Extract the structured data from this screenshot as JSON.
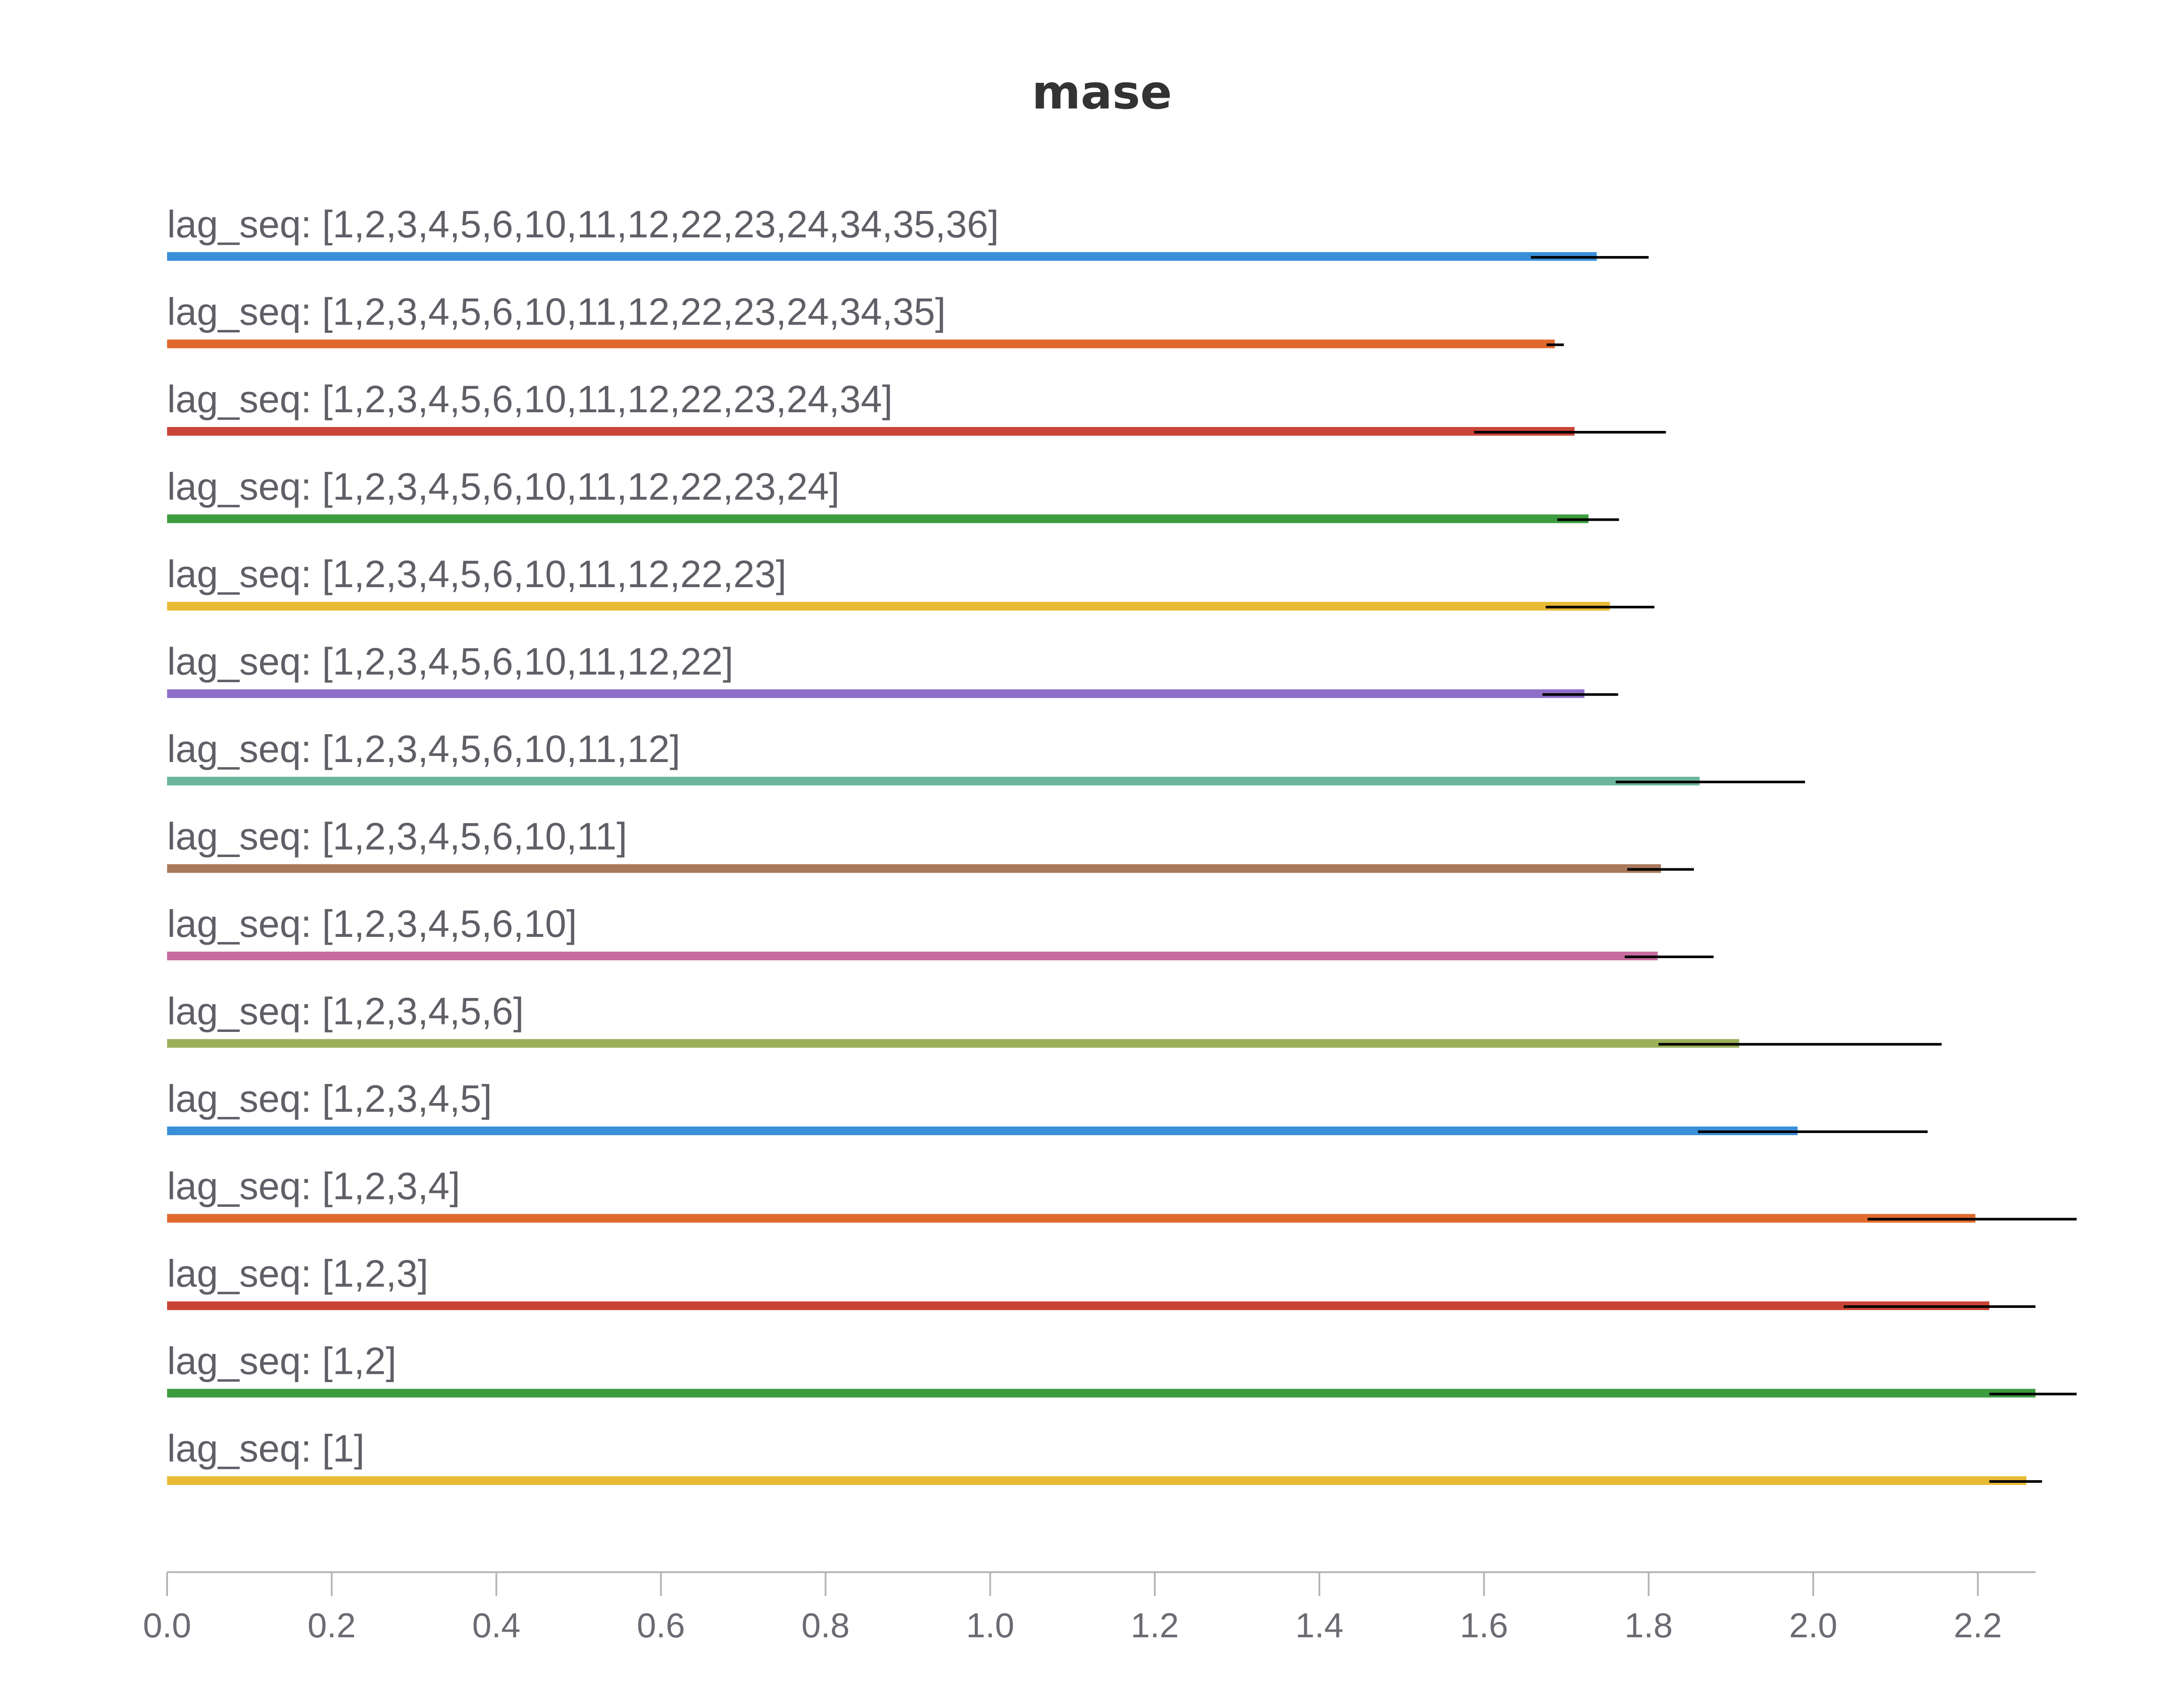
{
  "chart_data": {
    "type": "bar",
    "orientation": "horizontal",
    "title": "mase",
    "xlabel": "",
    "ylabel": "",
    "xlim": [
      0,
      2.27
    ],
    "x_ticks": [
      "0.0",
      "0.2",
      "0.4",
      "0.6",
      "0.8",
      "1.0",
      "1.2",
      "1.4",
      "1.6",
      "1.8",
      "2.0",
      "2.2"
    ],
    "x_tick_values": [
      0,
      0.2,
      0.4,
      0.6,
      0.8,
      1.0,
      1.2,
      1.4,
      1.6,
      1.8,
      2.0,
      2.2
    ],
    "grid": false,
    "legend": "none",
    "categories": [
      "lag_seq: [1,2,3,4,5,6,10,11,12,22,23,24,34,35,36]",
      "lag_seq: [1,2,3,4,5,6,10,11,12,22,23,24,34,35]",
      "lag_seq: [1,2,3,4,5,6,10,11,12,22,23,24,34]",
      "lag_seq: [1,2,3,4,5,6,10,11,12,22,23,24]",
      "lag_seq: [1,2,3,4,5,6,10,11,12,22,23]",
      "lag_seq: [1,2,3,4,5,6,10,11,12,22]",
      "lag_seq: [1,2,3,4,5,6,10,11,12]",
      "lag_seq: [1,2,3,4,5,6,10,11]",
      "lag_seq: [1,2,3,4,5,6,10]",
      "lag_seq: [1,2,3,4,5,6]",
      "lag_seq: [1,2,3,4,5]",
      "lag_seq: [1,2,3,4]",
      "lag_seq: [1,2,3]",
      "lag_seq: [1,2]",
      "lag_seq: [1]"
    ],
    "values": [
      1.737,
      1.686,
      1.71,
      1.727,
      1.753,
      1.722,
      1.862,
      1.815,
      1.811,
      1.91,
      1.981,
      2.197,
      2.214,
      2.27,
      2.259
    ],
    "error_low": [
      1.657,
      1.676,
      1.588,
      1.689,
      1.675,
      1.671,
      1.76,
      1.774,
      1.771,
      1.812,
      1.86,
      2.066,
      2.037,
      2.214,
      2.214
    ],
    "error_high": [
      1.8,
      1.697,
      1.821,
      1.764,
      1.807,
      1.763,
      1.99,
      1.855,
      1.879,
      2.156,
      2.139,
      2.32,
      2.27,
      2.32,
      2.278
    ],
    "colors": [
      "#3a8fd9",
      "#e0692e",
      "#c94437",
      "#3c9c3f",
      "#e8b934",
      "#8e6fc8",
      "#6bb59c",
      "#a87a5b",
      "#c86b9f",
      "#9bb059",
      "#3a8fd9",
      "#e0692e",
      "#c94437",
      "#3c9c3f",
      "#e8b934"
    ],
    "error_bar_color": "#000000",
    "axis_color": "#b3b3b3"
  }
}
